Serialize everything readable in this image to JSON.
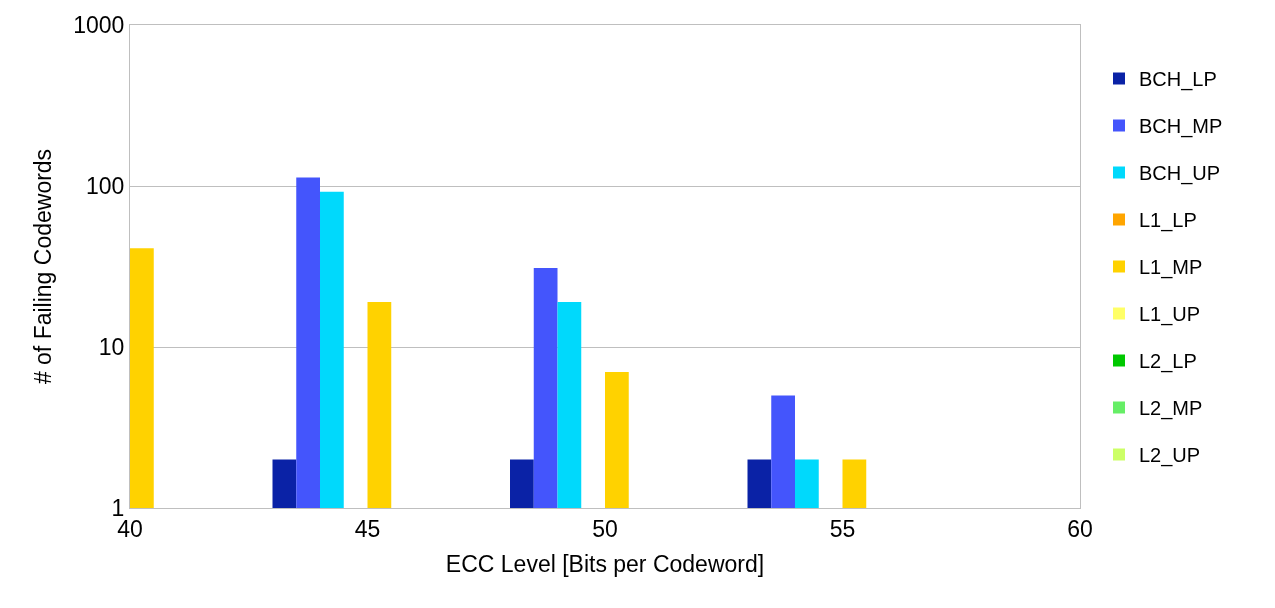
{
  "chart_data": {
    "type": "bar",
    "xlabel": "ECC Level [Bits per Codeword]",
    "ylabel": "# of Failing Codewords",
    "log": "y",
    "grid": "y",
    "legend": "right",
    "xlim": [
      40,
      60
    ],
    "xticks": [
      40,
      45,
      50,
      55,
      60
    ],
    "ylim": [
      1,
      1000
    ],
    "yticks": [
      1,
      10,
      100,
      1000
    ],
    "series": [
      {
        "name": "BCH_LP",
        "color": "#0a22a6",
        "x": [
          43,
          48,
          53
        ],
        "values": [
          2,
          2,
          2
        ]
      },
      {
        "name": "BCH_MP",
        "color": "#4455fc",
        "x": [
          43.5,
          48.5,
          53.5
        ],
        "values": [
          113,
          31,
          5
        ]
      },
      {
        "name": "BCH_UP",
        "color": "#00d9fc",
        "x": [
          44,
          49,
          54
        ],
        "values": [
          92,
          19,
          2
        ]
      },
      {
        "name": "L1_LP",
        "color": "#ffa500"
      },
      {
        "name": "L1_MP",
        "color": "#ffd200",
        "x": [
          40,
          45,
          50,
          55
        ],
        "values": [
          41,
          19,
          7,
          2
        ]
      },
      {
        "name": "L1_UP",
        "color": "#ffff66"
      },
      {
        "name": "L2_LP",
        "color": "#00c800"
      },
      {
        "name": "L2_MP",
        "color": "#66ee66"
      },
      {
        "name": "L2_UP",
        "color": "#ccff66"
      }
    ]
  }
}
